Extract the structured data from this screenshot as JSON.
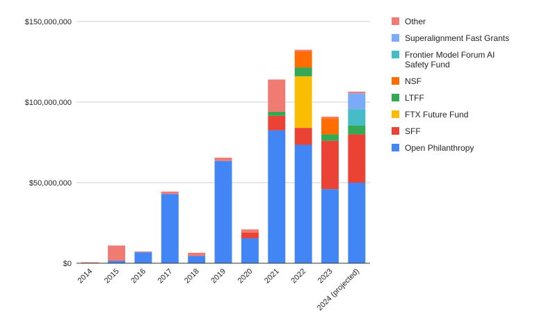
{
  "chart_data": {
    "type": "bar",
    "stacked": true,
    "title": "",
    "xlabel": "",
    "ylabel": "",
    "ylim": [
      0,
      150000000
    ],
    "yticks": [
      0,
      50000000,
      100000000,
      150000000
    ],
    "ytick_labels": [
      "$0",
      "$50,000,000",
      "$100,000,000",
      "$150,000,000"
    ],
    "grid": true,
    "legend_position": "right",
    "categories": [
      "2014",
      "2015",
      "2016",
      "2017",
      "2018",
      "2019",
      "2020",
      "2021",
      "2022",
      "2023",
      "2024 (projected)"
    ],
    "series": [
      {
        "name": "Open Philanthropy",
        "color": "#4285f4",
        "values": [
          0,
          1500000,
          6800000,
          43000000,
          4500000,
          63500000,
          15500000,
          82500000,
          73500000,
          46000000,
          50000000
        ]
      },
      {
        "name": "SFF",
        "color": "#ea4335",
        "values": [
          0,
          0,
          0,
          0,
          0,
          0,
          3500000,
          9000000,
          10500000,
          30000000,
          30000000
        ]
      },
      {
        "name": "FTX Future Fund",
        "color": "#fbbc04",
        "values": [
          0,
          0,
          0,
          0,
          0,
          0,
          0,
          0,
          32000000,
          0,
          0
        ]
      },
      {
        "name": "LTFF",
        "color": "#34a853",
        "values": [
          0,
          0,
          0,
          0,
          0,
          0,
          0,
          2500000,
          5500000,
          4000000,
          5500000
        ]
      },
      {
        "name": "NSF",
        "color": "#ff6d01",
        "values": [
          0,
          0,
          0,
          0,
          0,
          0,
          0,
          0,
          10000000,
          10000000,
          0
        ]
      },
      {
        "name": "Frontier Model Forum AI Safety Fund",
        "color": "#46bdc6",
        "values": [
          0,
          0,
          0,
          0,
          0,
          0,
          0,
          0,
          0,
          0,
          10000000
        ]
      },
      {
        "name": "Superalignment Fast Grants",
        "color": "#7baaf7",
        "values": [
          0,
          0,
          0,
          0,
          0,
          0,
          0,
          0,
          0,
          0,
          10000000
        ]
      },
      {
        "name": "Other",
        "color": "#f07b72",
        "values": [
          600000,
          9500000,
          500000,
          1500000,
          2000000,
          2000000,
          2000000,
          20000000,
          1000000,
          1000000,
          1000000
        ]
      }
    ],
    "legend_order": [
      "Other",
      "Superalignment Fast Grants",
      "Frontier Model Forum AI Safety Fund",
      "NSF",
      "LTFF",
      "FTX Future Fund",
      "SFF",
      "Open Philanthropy"
    ]
  }
}
